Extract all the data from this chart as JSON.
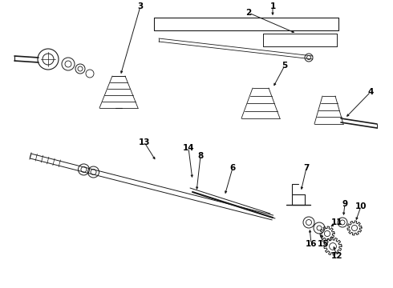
{
  "background_color": "#ffffff",
  "line_color": "#1a1a1a",
  "text_color": "#000000",
  "fig_width": 4.9,
  "fig_height": 3.6,
  "dpi": 100,
  "font_size": 7.5,
  "font_weight": "bold",
  "lw": 0.7
}
